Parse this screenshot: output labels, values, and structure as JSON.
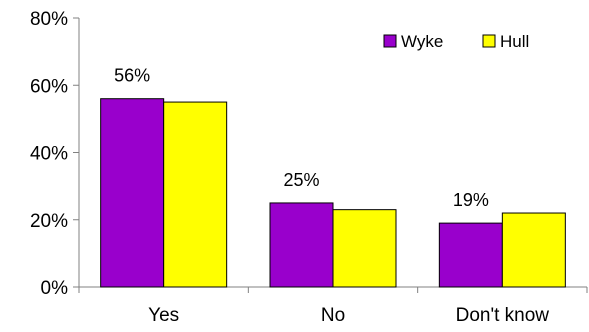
{
  "chart_data": {
    "type": "bar",
    "categories": [
      "Yes",
      "No",
      "Don't know"
    ],
    "series": [
      {
        "name": "Wyke",
        "values": [
          56,
          25,
          19
        ],
        "color": "#9900cc"
      },
      {
        "name": "Hull",
        "values": [
          55,
          23,
          22
        ],
        "color": "#ffff00"
      }
    ],
    "data_labels": [
      "56%",
      "25%",
      "19%"
    ],
    "y_ticks": [
      "0%",
      "20%",
      "40%",
      "60%",
      "80%"
    ],
    "ylim": [
      0,
      80
    ],
    "legend_position": "top-right",
    "grid": false
  }
}
